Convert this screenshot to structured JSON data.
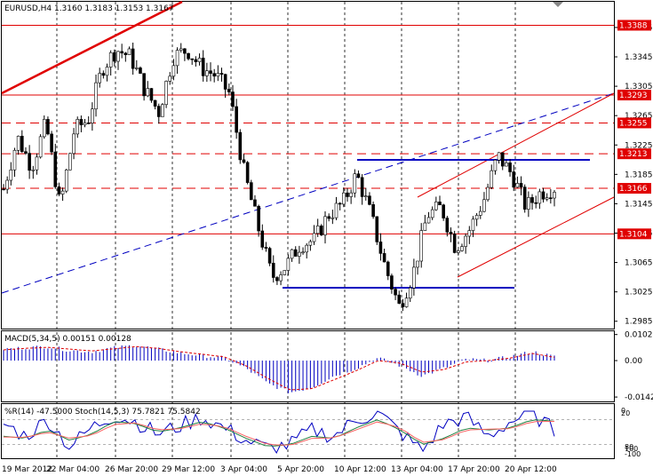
{
  "header": {
    "symbol": "EURUSD,H4",
    "ohlc": "1.3160 1.3183 1.3153 1.3167"
  },
  "chart_data": [
    {
      "type": "candlestick",
      "panel": "price",
      "title": "EURUSD,H4  1.3160 1.3183 1.3153 1.3167",
      "ylim": [
        1.2975,
        1.342
      ],
      "y_ticks": [
        "1.3385",
        "1.3345",
        "1.3305",
        "1.3265",
        "1.3225",
        "1.3185",
        "1.3145",
        "1.3105",
        "1.3065",
        "1.3025",
        "1.2985"
      ],
      "highlighted_levels": [
        {
          "label": "1.3388",
          "value": 1.3388,
          "style": "solid",
          "color": "#e00000"
        },
        {
          "label": "1.3293",
          "value": 1.3293,
          "style": "solid",
          "color": "#e00000"
        },
        {
          "label": "1.3255",
          "value": 1.3255,
          "style": "dashed",
          "color": "#e00000"
        },
        {
          "label": "1.3213",
          "value": 1.3213,
          "style": "dashed",
          "color": "#e00000"
        },
        {
          "label": "1.3166",
          "value": 1.3166,
          "style": "dashed",
          "color": "#e00000"
        },
        {
          "label": "1.3104",
          "value": 1.3104,
          "style": "solid",
          "color": "#e00000"
        }
      ],
      "support_resistance": [
        {
          "name": "upper-range",
          "value": 1.3205,
          "color": "#0000c0",
          "from": "10 Apr 10:00",
          "to": "20 Apr 16:00"
        },
        {
          "name": "lower-range",
          "value": 1.3032,
          "color": "#0000c0",
          "from": "4 Apr 20:00",
          "to": "19 Apr 20:00"
        }
      ],
      "x_ticks": [
        "19 Mar 2012",
        "22 Mar 04:00",
        "26 Mar 20:00",
        "29 Mar 12:00",
        "3 Apr 04:00",
        "5 Apr 20:00",
        "10 Apr 12:00",
        "13 Apr 04:00",
        "17 Apr 20:00",
        "20 Apr 12:00"
      ],
      "close_path": [
        {
          "x": "19 Mar 2012",
          "close": 1.3165
        },
        {
          "x": "19 Mar 20:00",
          "close": 1.3235
        },
        {
          "x": "20 Mar 16:00",
          "close": 1.3195
        },
        {
          "x": "21 Mar 12:00",
          "close": 1.3255
        },
        {
          "x": "22 Mar 04:00",
          "close": 1.314
        },
        {
          "x": "23 Mar 04:00",
          "close": 1.3245
        },
        {
          "x": "23 Mar 20:00",
          "close": 1.326
        },
        {
          "x": "26 Mar 08:00",
          "close": 1.333
        },
        {
          "x": "26 Mar 20:00",
          "close": 1.3355
        },
        {
          "x": "27 Mar 16:00",
          "close": 1.3345
        },
        {
          "x": "28 Mar 12:00",
          "close": 1.33
        },
        {
          "x": "29 Mar 04:00",
          "close": 1.327
        },
        {
          "x": "29 Mar 12:00",
          "close": 1.3345
        },
        {
          "x": "30 Mar 08:00",
          "close": 1.3355
        },
        {
          "x": "2 Apr 04:00",
          "close": 1.333
        },
        {
          "x": "2 Apr 20:00",
          "close": 1.332
        },
        {
          "x": "3 Apr 04:00",
          "close": 1.3295
        },
        {
          "x": "3 Apr 20:00",
          "close": 1.319
        },
        {
          "x": "4 Apr 12:00",
          "close": 1.3115
        },
        {
          "x": "5 Apr 04:00",
          "close": 1.3045
        },
        {
          "x": "5 Apr 20:00",
          "close": 1.306
        },
        {
          "x": "6 Apr 16:00",
          "close": 1.309
        },
        {
          "x": "9 Apr 12:00",
          "close": 1.3095
        },
        {
          "x": "10 Apr 04:00",
          "close": 1.313
        },
        {
          "x": "10 Apr 12:00",
          "close": 1.3145
        },
        {
          "x": "11 Apr 08:00",
          "close": 1.3185
        },
        {
          "x": "12 Apr 04:00",
          "close": 1.313
        },
        {
          "x": "12 Apr 20:00",
          "close": 1.306
        },
        {
          "x": "13 Apr 04:00",
          "close": 1.3005
        },
        {
          "x": "13 Apr 20:00",
          "close": 1.305
        },
        {
          "x": "16 Apr 12:00",
          "close": 1.313
        },
        {
          "x": "17 Apr 04:00",
          "close": 1.314
        },
        {
          "x": "17 Apr 20:00",
          "close": 1.3085
        },
        {
          "x": "18 Apr 16:00",
          "close": 1.311
        },
        {
          "x": "19 Apr 12:00",
          "close": 1.315
        },
        {
          "x": "20 Apr 04:00",
          "close": 1.321
        },
        {
          "x": "20 Apr 12:00",
          "close": 1.3185
        },
        {
          "x": "20 Apr 20:00",
          "close": 1.314
        },
        {
          "x": "23 Apr 04:00",
          "close": 1.316
        },
        {
          "x": "23 Apr 12:00",
          "close": 1.3167
        }
      ]
    },
    {
      "type": "bar",
      "panel": "macd",
      "title": "MACD(5,34,5) 0.00151 0.00128",
      "ylim": [
        -0.016,
        0.0115
      ],
      "y_ticks": [
        "0.01021",
        "0.00",
        "-0.01429"
      ],
      "x": [
        "19 Mar",
        "20 Mar",
        "21 Mar",
        "22 Mar",
        "23 Mar",
        "26 Mar",
        "27 Mar",
        "28 Mar",
        "29 Mar",
        "30 Mar",
        "2 Apr",
        "3 Apr",
        "4 Apr",
        "5 Apr",
        "6 Apr",
        "9 Apr",
        "10 Apr",
        "11 Apr",
        "12 Apr",
        "13 Apr",
        "16 Apr",
        "17 Apr",
        "18 Apr",
        "19 Apr",
        "20 Apr",
        "23 Apr"
      ],
      "series": [
        {
          "values": [
            0.0045,
            0.005,
            0.0055,
            0.004,
            0.0035,
            0.005,
            0.006,
            0.0045,
            0.003,
            0.002,
            0.001,
            -0.003,
            -0.009,
            -0.0125,
            -0.0105,
            -0.006,
            -0.003,
            0.001,
            -0.002,
            -0.006,
            -0.003,
            0.0005,
            0.0,
            0.0015,
            0.0035,
            0.0015
          ]
        },
        {
          "values": [
            0.0042,
            0.0048,
            0.0052,
            0.0045,
            0.0038,
            0.0046,
            0.0055,
            0.0048,
            0.0035,
            0.0025,
            0.0015,
            -0.002,
            -0.007,
            -0.0115,
            -0.011,
            -0.0075,
            -0.004,
            0.0,
            -0.001,
            -0.0045,
            -0.0035,
            -0.0005,
            0.0,
            0.001,
            0.0028,
            0.0013
          ]
        }
      ]
    },
    {
      "type": "line",
      "panel": "oscillator",
      "title": "%R(14) -47.5000  Stoch(14,5,3) 75.7821 75.5842",
      "y_tick_labels": [
        "0",
        "20",
        "80",
        "100",
        "-100"
      ],
      "x": [
        "19 Mar",
        "20 Mar",
        "21 Mar",
        "22 Mar",
        "23 Mar",
        "26 Mar",
        "27 Mar",
        "28 Mar",
        "29 Mar",
        "30 Mar",
        "2 Apr",
        "3 Apr",
        "4 Apr",
        "5 Apr",
        "6 Apr",
        "9 Apr",
        "10 Apr",
        "11 Apr",
        "12 Apr",
        "13 Apr",
        "16 Apr",
        "17 Apr",
        "18 Apr",
        "19 Apr",
        "20 Apr",
        "23 Apr"
      ],
      "series": [
        {
          "color": "#0000c0",
          "values": [
            -30,
            -60,
            -20,
            -85,
            -40,
            -10,
            -25,
            -55,
            -35,
            -15,
            -40,
            -70,
            -90,
            -80,
            -45,
            -60,
            -20,
            -5,
            -50,
            -95,
            -30,
            -15,
            -60,
            -25,
            -5,
            -47.5
          ]
        },
        {
          "color": "#208040",
          "values": [
            40,
            35,
            55,
            30,
            45,
            75,
            70,
            50,
            60,
            75,
            60,
            35,
            15,
            20,
            40,
            35,
            60,
            80,
            55,
            20,
            35,
            60,
            55,
            60,
            80,
            75.8
          ]
        },
        {
          "color": "#ff6060",
          "values": [
            38,
            37,
            50,
            35,
            42,
            68,
            72,
            55,
            58,
            70,
            63,
            40,
            20,
            18,
            35,
            36,
            55,
            75,
            60,
            25,
            32,
            55,
            57,
            58,
            75,
            75.6
          ]
        }
      ]
    }
  ]
}
